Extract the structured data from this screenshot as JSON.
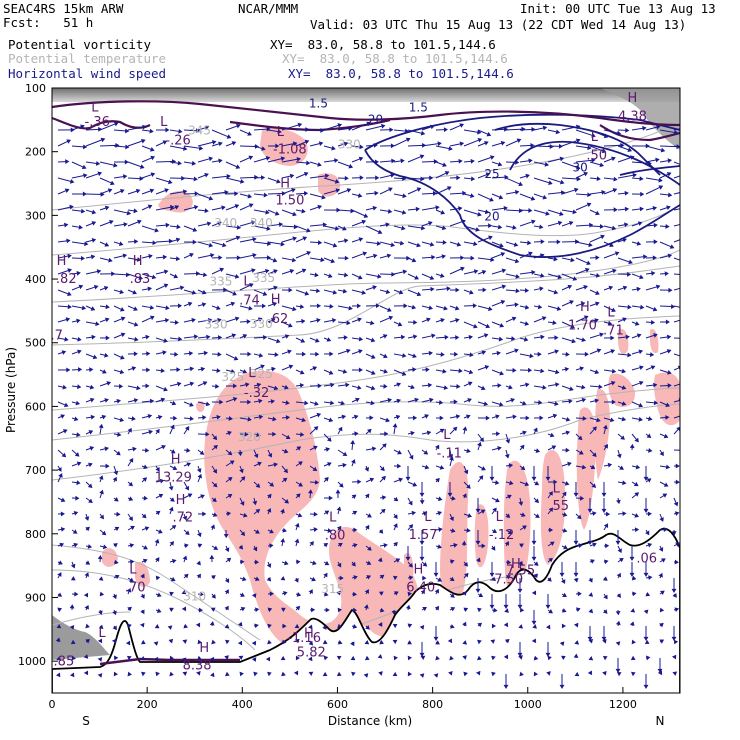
{
  "header": {
    "model": "SEAC4RS 15km ARW",
    "forecast": "Fcst:   51 h",
    "org": "NCAR/MMM",
    "init": "Init: 00 UTC Tue 13 Aug 13",
    "valid": "Valid: 03 UTC Thu 15 Aug 13 (22 CDT Wed 14 Aug 13)",
    "fields": [
      {
        "name": "Potential vorticity",
        "xy": "XY=  83.0, 58.8 to 101.5,144.6",
        "color": "#000000"
      },
      {
        "name": "Potential temperature",
        "xy": "XY=  83.0, 58.8 to 101.5,144.6",
        "color": "#b4b4b4"
      },
      {
        "name": "Horizontal wind speed",
        "xy": "XY=  83.0, 58.8 to 101.5,144.6",
        "color": "#1a1a8c"
      }
    ]
  },
  "chart_data": {
    "type": "cross-section",
    "xlabel": "Distance (km)",
    "ylabel": "Pressure (hPa)",
    "xlim": [
      0,
      1320
    ],
    "ylim": [
      1050,
      100
    ],
    "x_ticks": [
      "0",
      "200",
      "400",
      "600",
      "800",
      "1000",
      "1200"
    ],
    "y_ticks": [
      "100",
      "200",
      "300",
      "400",
      "500",
      "600",
      "700",
      "800",
      "900",
      "1000"
    ],
    "x_endpoints": {
      "left": "S",
      "right": "N"
    },
    "colors": {
      "pv_positive_fill": "#f8b8b8",
      "theta": "#b4b4b4",
      "wind_contour": "#1a1a80",
      "pv_contour": "#4a1050",
      "terrain": "#000000",
      "wind_barb": "#1a1a90",
      "hl_label": "#5a1a6e"
    },
    "theta_labels": [
      {
        "text": "345",
        "x": 310,
        "p": 173
      },
      {
        "text": "340",
        "x": 365,
        "p": 318
      },
      {
        "text": "340",
        "x": 440,
        "p": 318
      },
      {
        "text": "335",
        "x": 355,
        "p": 410
      },
      {
        "text": "335",
        "x": 445,
        "p": 405
      },
      {
        "text": "330",
        "x": 345,
        "p": 478
      },
      {
        "text": "330",
        "x": 440,
        "p": 477
      },
      {
        "text": "325",
        "x": 380,
        "p": 560
      },
      {
        "text": "325",
        "x": 440,
        "p": 555
      },
      {
        "text": "320",
        "x": 415,
        "p": 654
      },
      {
        "text": "315",
        "x": 590,
        "p": 893
      },
      {
        "text": "310",
        "x": 300,
        "p": 905
      },
      {
        "text": "330",
        "x": 625,
        "p": 195
      }
    ],
    "wind_labels": [
      {
        "text": "20",
        "x": 680,
        "p": 156
      },
      {
        "text": "25",
        "x": 925,
        "p": 241
      },
      {
        "text": "20",
        "x": 925,
        "p": 308
      },
      {
        "text": "30",
        "x": 1110,
        "p": 231
      },
      {
        "text": "1.5",
        "x": 560,
        "p": 131
      },
      {
        "text": "1.5",
        "x": 770,
        "p": 137
      }
    ],
    "hl_labels": [
      {
        "text": "L",
        "x": 90,
        "p": 137
      },
      {
        "text": "-.36",
        "x": 95,
        "p": 160
      },
      {
        "text": "L",
        "x": 235,
        "p": 160
      },
      {
        "text": "-.26",
        "x": 265,
        "p": 189
      },
      {
        "text": "L",
        "x": 480,
        "p": 175
      },
      {
        "text": "-1.08",
        "x": 500,
        "p": 203
      },
      {
        "text": "H",
        "x": 490,
        "p": 256
      },
      {
        "text": "1.50",
        "x": 500,
        "p": 283
      },
      {
        "text": "H",
        "x": 20,
        "p": 378
      },
      {
        "text": ".82",
        "x": 30,
        "p": 406
      },
      {
        "text": "H",
        "x": 180,
        "p": 378
      },
      {
        "text": ".83",
        "x": 185,
        "p": 406
      },
      {
        "text": "L",
        "x": 410,
        "p": 410
      },
      {
        "text": ".74",
        "x": 415,
        "p": 440
      },
      {
        "text": "H",
        "x": 470,
        "p": 438
      },
      {
        "text": ".62",
        "x": 475,
        "p": 469
      },
      {
        "text": "-.7",
        "x": 5,
        "p": 495
      },
      {
        "text": "L",
        "x": 420,
        "p": 554
      },
      {
        "text": "-.32",
        "x": 430,
        "p": 585
      },
      {
        "text": "H",
        "x": 260,
        "p": 690
      },
      {
        "text": "13.29",
        "x": 255,
        "p": 718
      },
      {
        "text": "H",
        "x": 270,
        "p": 753
      },
      {
        "text": ".72",
        "x": 275,
        "p": 781
      },
      {
        "text": "L",
        "x": 830,
        "p": 651
      },
      {
        "text": "-.11",
        "x": 835,
        "p": 680
      },
      {
        "text": "L",
        "x": 790,
        "p": 780
      },
      {
        "text": "1.57",
        "x": 780,
        "p": 808
      },
      {
        "text": "L",
        "x": 940,
        "p": 780
      },
      {
        "text": "-.12",
        "x": 945,
        "p": 808
      },
      {
        "text": "L",
        "x": 1060,
        "p": 735
      },
      {
        "text": ".55",
        "x": 1065,
        "p": 763
      },
      {
        "text": "L",
        "x": 590,
        "p": 781
      },
      {
        "text": ".80",
        "x": 595,
        "p": 809
      },
      {
        "text": "H",
        "x": 1120,
        "p": 450
      },
      {
        "text": "1.70",
        "x": 1115,
        "p": 479
      },
      {
        "text": "L",
        "x": 1175,
        "p": 459
      },
      {
        "text": ".71",
        "x": 1180,
        "p": 487
      },
      {
        "text": "L",
        "x": 1140,
        "p": 183
      },
      {
        "text": ".50",
        "x": 1145,
        "p": 212
      },
      {
        "text": "H",
        "x": 1220,
        "p": 122
      },
      {
        "text": "4.38",
        "x": 1220,
        "p": 151
      },
      {
        "text": "L",
        "x": 170,
        "p": 862
      },
      {
        "text": ".70",
        "x": 175,
        "p": 891
      },
      {
        "text": "H",
        "x": 770,
        "p": 862
      },
      {
        "text": "6.40",
        "x": 775,
        "p": 891
      },
      {
        "text": "H",
        "x": 975,
        "p": 854
      },
      {
        "text": "7.55",
        "x": 985,
        "p": 864
      },
      {
        "text": "-7.50",
        "x": 955,
        "p": 878
      },
      {
        "text": "L",
        "x": 105,
        "p": 962
      },
      {
        "text": "H",
        "x": 540,
        "p": 963
      },
      {
        "text": "5.82",
        "x": 545,
        "p": 993
      },
      {
        "text": "-1.16",
        "x": 530,
        "p": 970
      },
      {
        "text": "H",
        "x": 320,
        "p": 986
      },
      {
        "text": "8.38",
        "x": 305,
        "p": 1013
      },
      {
        "text": ".85",
        "x": 25,
        "p": 1007
      },
      {
        "text": ".06",
        "x": 1250,
        "p": 845
      }
    ]
  }
}
